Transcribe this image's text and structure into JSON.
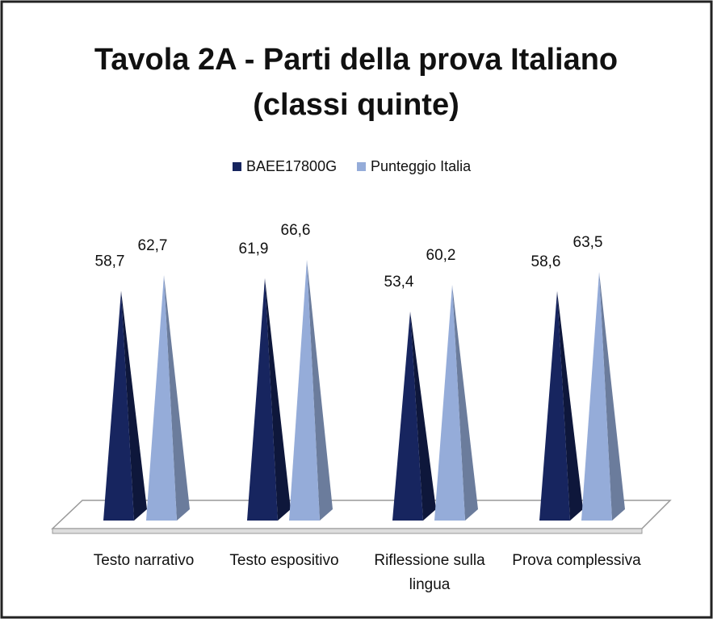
{
  "chart_data": {
    "type": "pyramid",
    "title": "Tavola 2A - Parti della prova Italiano",
    "subtitle": "(classi quinte)",
    "categories": [
      "Testo narrativo",
      "Testo espositivo",
      "Riflessione sulla lingua",
      "Prova complessiva"
    ],
    "series": [
      {
        "name": "BAEE17800G",
        "color": "#17255f",
        "values": [
          58.7,
          61.9,
          53.4,
          58.6
        ],
        "value_labels": [
          "58,7",
          "61,9",
          "53,4",
          "58,6"
        ]
      },
      {
        "name": "Punteggio Italia",
        "color": "#95acd9",
        "values": [
          62.7,
          66.6,
          60.2,
          63.5
        ],
        "value_labels": [
          "62,7",
          "66,6",
          "60,2",
          "63,5"
        ]
      }
    ],
    "legend": "top"
  }
}
